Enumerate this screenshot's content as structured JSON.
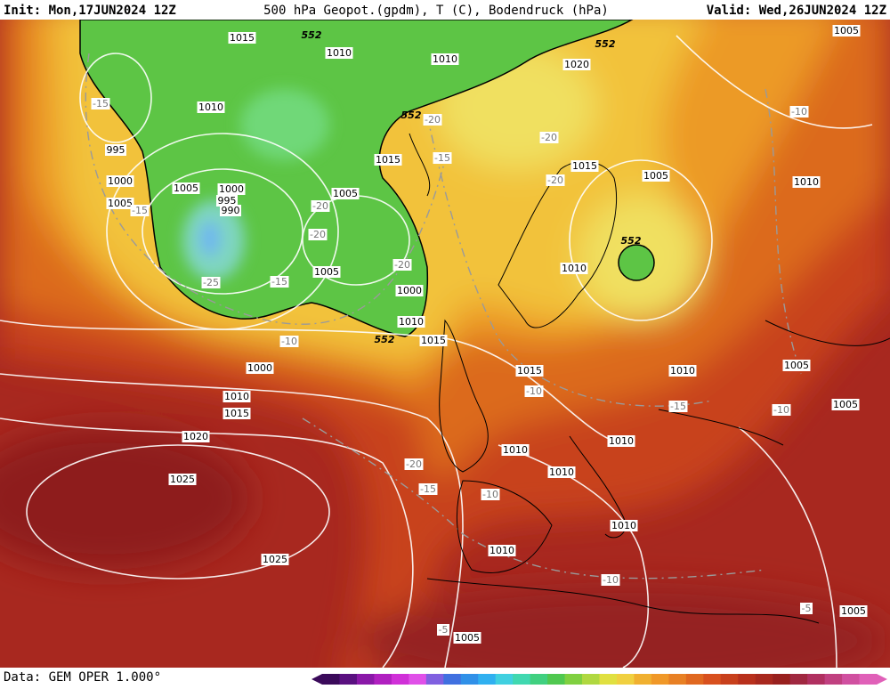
{
  "header": {
    "init": "Init: Mon,17JUN2024 12Z",
    "title": "500 hPa Geopot.(gpdm), T (C), Bodendruck (hPa)",
    "valid": "Valid: Wed,26JUN2024 12Z"
  },
  "footer": {
    "source": "Data: GEM OPER 1.000°"
  },
  "map": {
    "isobar_labels": [
      "1015",
      "1010",
      "1010",
      "1010",
      "995",
      "1000",
      "1005",
      "1005",
      "1000",
      "995",
      "990",
      "1005",
      "1015",
      "1005",
      "1000",
      "1010",
      "1015",
      "1000",
      "1010",
      "1015",
      "1020",
      "1025",
      "1025",
      "1020",
      "1015",
      "1005",
      "1010",
      "1015",
      "1010",
      "1005",
      "1005",
      "1010",
      "1010",
      "1010",
      "1010",
      "1010",
      "1005",
      "1005",
      "1005",
      "1010"
    ],
    "temperature_labels": [
      "-15",
      "-15",
      "-25",
      "-15",
      "-20",
      "-20",
      "-20",
      "-10",
      "-20",
      "-15",
      "-20",
      "-20",
      "-10",
      "-10",
      "-15",
      "-10",
      "-20",
      "-15",
      "-10",
      "-10",
      "-5",
      "-5"
    ],
    "geopotential_labels": [
      "552",
      "552",
      "552",
      "552",
      "552"
    ]
  }
}
